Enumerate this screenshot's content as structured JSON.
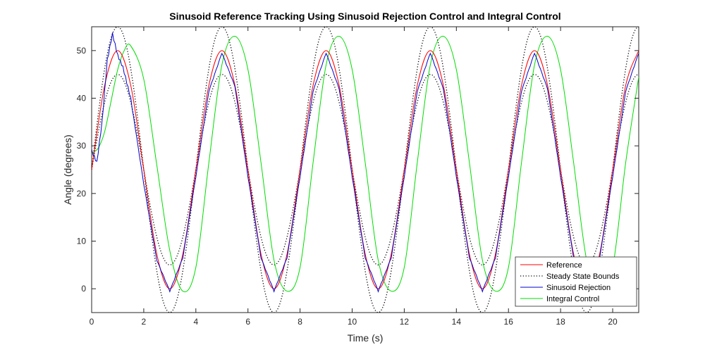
{
  "chart_data": {
    "type": "line",
    "title": "Sinusoid Reference Tracking Using Sinusoid Rejection Control and Integral Control",
    "xlabel": "Time (s)",
    "ylabel": "Angle (degrees)",
    "xlim": [
      0,
      21
    ],
    "ylim": [
      -5,
      55
    ],
    "xticks": [
      0,
      2,
      4,
      6,
      8,
      10,
      12,
      14,
      16,
      18,
      20
    ],
    "yticks": [
      0,
      10,
      20,
      30,
      40,
      50
    ],
    "grid": false,
    "legend_position": "bottom-right",
    "series": [
      {
        "name": "Reference",
        "color": "#ff0000",
        "style": "solid",
        "model": "25 + 25*sin(2*pi*t/4)",
        "x": [
          0,
          0.5,
          1,
          1.5,
          2,
          2.5,
          3,
          3.5,
          4,
          4.5,
          5,
          5.5,
          6,
          6.5,
          7,
          7.5,
          8,
          8.5,
          9,
          9.5,
          10,
          10.5,
          11,
          11.5,
          12,
          12.5,
          13,
          13.5,
          14,
          14.5,
          15,
          15.5,
          16,
          16.5,
          17,
          17.5,
          18,
          18.5,
          19,
          19.5,
          20,
          20.5,
          21
        ],
        "y": [
          25,
          42.7,
          50,
          42.7,
          25,
          7.3,
          0,
          7.3,
          25,
          42.7,
          50,
          42.7,
          25,
          7.3,
          0,
          7.3,
          25,
          42.7,
          50,
          42.7,
          25,
          7.3,
          0,
          7.3,
          25,
          42.7,
          50,
          42.7,
          25,
          7.3,
          0,
          7.3,
          25,
          42.7,
          50,
          42.7,
          25,
          7.3,
          0,
          7.3,
          25,
          42.7,
          50
        ]
      },
      {
        "name": "Steady State Bounds",
        "color": "#000000",
        "style": "dotted",
        "upper_model": "25 + 30*sin(2*pi*t/4)",
        "lower_model": "25 + 20*sin(2*pi*t/4)",
        "upper_peak": 55,
        "upper_trough": -5,
        "lower_peak": 45,
        "lower_trough": 5
      },
      {
        "name": "Sinusoid Rejection",
        "color": "#0000cc",
        "style": "solid",
        "x": [
          0,
          0.2,
          0.4,
          0.6,
          0.8,
          1.0,
          1.2,
          1.5,
          2,
          2.5,
          3,
          3.5,
          4,
          4.5,
          5,
          5.5,
          6,
          6.5,
          7,
          7.5,
          8,
          8.5,
          9,
          9.5,
          10,
          10.5,
          11,
          11.5,
          12,
          12.5,
          13,
          13.5,
          14,
          14.5,
          15,
          15.5,
          16,
          16.5,
          17,
          17.5,
          18,
          18.5,
          19,
          19.5,
          20,
          20.5,
          21
        ],
        "y": [
          29,
          26.5,
          35,
          48,
          53.5,
          49,
          46.5,
          40,
          22,
          6,
          -0.5,
          6.5,
          23.5,
          41.5,
          49.5,
          42.5,
          23.5,
          6.5,
          -0.5,
          6.5,
          23.5,
          41.5,
          49.5,
          42,
          23.5,
          6.5,
          -0.5,
          6.5,
          23.5,
          41.5,
          49.5,
          42,
          23.5,
          6.5,
          -0.5,
          6.5,
          23.5,
          41.5,
          49.5,
          42,
          23.5,
          6.5,
          -0.5,
          6.5,
          23.5,
          41.5,
          49.5
        ]
      },
      {
        "name": "Integral Control",
        "color": "#00dd00",
        "style": "solid",
        "x": [
          0,
          0.25,
          0.5,
          0.75,
          1.0,
          1.25,
          1.5,
          2,
          2.5,
          3,
          3.5,
          4,
          4.5,
          5,
          5.5,
          6,
          6.5,
          7,
          7.5,
          8,
          8.5,
          9,
          9.5,
          10,
          10.5,
          11,
          11.5,
          12,
          12.5,
          13,
          13.5,
          14,
          14.5,
          15,
          15.5,
          16,
          16.5,
          17,
          17.5,
          18,
          18.5,
          19,
          19.5,
          20,
          20.5,
          21
        ],
        "y": [
          28.5,
          29.5,
          33,
          39.5,
          46,
          50,
          51,
          44,
          26,
          8,
          -0.5,
          4.5,
          26.5,
          47,
          53,
          46,
          26.5,
          6,
          -0.5,
          4.5,
          26.5,
          47,
          53,
          46,
          26.5,
          6,
          -0.5,
          4.5,
          26.5,
          47,
          53,
          46,
          26.5,
          6,
          -0.5,
          4.5,
          26.5,
          47,
          53,
          46,
          26.5,
          6,
          -0.5,
          4.5,
          26.5,
          44.5
        ]
      }
    ]
  }
}
